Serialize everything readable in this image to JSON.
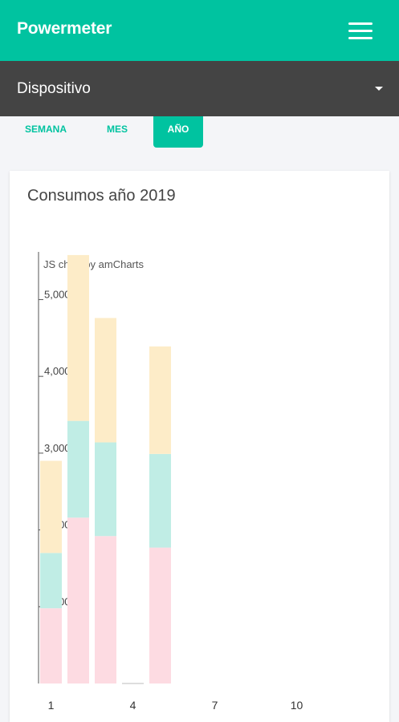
{
  "app": {
    "title": "Powermeter"
  },
  "device_selector": {
    "label": "Dispositivo"
  },
  "tabs": [
    {
      "label": "SEMANA",
      "active": false
    },
    {
      "label": "MES",
      "active": false
    },
    {
      "label": "AÑO",
      "active": true
    }
  ],
  "card": {
    "title": "Consumos año 2019"
  },
  "chart_data": {
    "type": "bar",
    "stacked": true,
    "watermark": "JS chart by amCharts",
    "x": [
      1,
      2,
      3,
      4,
      5
    ],
    "x_tick_labels": [
      "1",
      "4",
      "7",
      "10"
    ],
    "y_tick_labels": [
      "1,000",
      "2,000",
      "3,000",
      "4,000",
      "5,000"
    ],
    "ylim": [
      0,
      5600
    ],
    "series": [
      {
        "color": "#fddbe2",
        "values": [
          980,
          2160,
          1920,
          0,
          1770
        ]
      },
      {
        "color": "#c0ede5",
        "values": [
          720,
          1260,
          1220,
          0,
          1220
        ]
      },
      {
        "color": "#fdecc8",
        "values": [
          1200,
          2160,
          1620,
          0,
          1400
        ]
      }
    ],
    "grid": false,
    "legend": "none"
  },
  "colors": {
    "accent": "#00c3a0",
    "device_bar": "#444444",
    "background": "#f4f5f8"
  }
}
